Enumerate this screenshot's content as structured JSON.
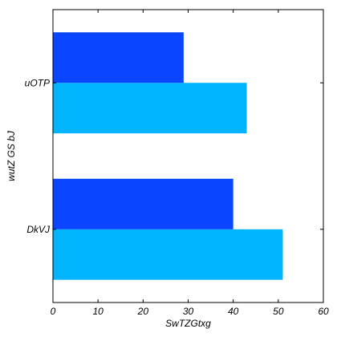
{
  "chart_data": {
    "type": "bar",
    "orientation": "horizontal",
    "categories": [
      "DkVJ",
      "uOTP"
    ],
    "series": [
      {
        "values": [
          51,
          43
        ],
        "color": "#00b4ff"
      },
      {
        "values": [
          40,
          29
        ],
        "color": "#0a46ff"
      }
    ],
    "xlabel": "SwTZGtxg",
    "ylabel": "wutZ GS bJ",
    "xlim": [
      0,
      60
    ],
    "xticks": [
      0,
      10,
      20,
      30,
      40,
      50,
      60
    ],
    "grid": false,
    "legend": "none"
  }
}
